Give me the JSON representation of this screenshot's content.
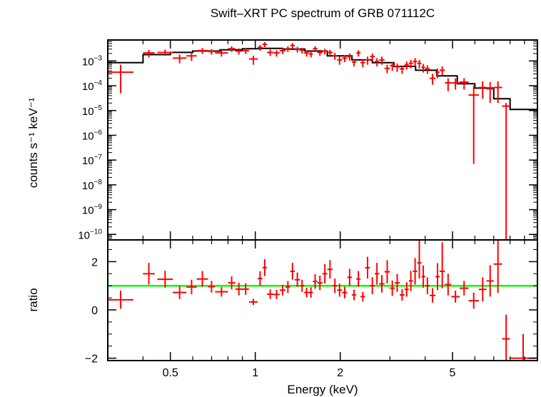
{
  "chart_data": [
    {
      "type": "scatter",
      "title": "Swift–XRT PC spectrum of GRB 071112C",
      "ylabel": "counts s⁻¹ keV⁻¹",
      "xlabel": "Energy (keV)",
      "xscale": "log",
      "yscale": "log",
      "xlim": [
        0.3,
        10
      ],
      "ylim": [
        6e-11,
        0.007
      ],
      "yticks": [
        {
          "value": 0.001,
          "mantissa": "10",
          "exp": "−3"
        },
        {
          "value": 0.0001,
          "mantissa": "10",
          "exp": "−4"
        },
        {
          "value": 1e-05,
          "mantissa": "10",
          "exp": "−5"
        },
        {
          "value": 1e-06,
          "mantissa": "10",
          "exp": "−6"
        },
        {
          "value": 1e-07,
          "mantissa": "10",
          "exp": "−7"
        },
        {
          "value": 1e-08,
          "mantissa": "10",
          "exp": "−8"
        },
        {
          "value": 1e-09,
          "mantissa": "10",
          "exp": "−9"
        },
        {
          "value": 1e-10,
          "mantissa": "10",
          "exp": "−10"
        }
      ],
      "model": {
        "color": "#000000",
        "bins": [
          [
            0.3,
            0.4,
            0.00085
          ],
          [
            0.4,
            0.5,
            0.0018
          ],
          [
            0.5,
            0.6,
            0.0022
          ],
          [
            0.6,
            0.75,
            0.0025
          ],
          [
            0.75,
            0.9,
            0.0028
          ],
          [
            0.9,
            1.05,
            0.0031
          ],
          [
            1.05,
            1.25,
            0.0032
          ],
          [
            1.25,
            1.5,
            0.003
          ],
          [
            1.5,
            1.8,
            0.0025
          ],
          [
            1.8,
            2.2,
            0.0016
          ],
          [
            2.2,
            2.6,
            0.0011
          ],
          [
            2.6,
            3.1,
            0.00085
          ],
          [
            3.1,
            3.7,
            0.0006
          ],
          [
            3.7,
            4.4,
            0.00042
          ],
          [
            4.4,
            5.2,
            0.00025
          ],
          [
            5.2,
            6.0,
            0.00012
          ],
          [
            6.0,
            7.0,
            8e-05
          ],
          [
            7.0,
            8.0,
            3e-05
          ],
          [
            8.0,
            9.0,
            1.1e-05
          ],
          [
            9.0,
            10.0,
            1.1e-05
          ]
        ]
      },
      "points": {
        "color": "#ff0000",
        "values": [
          [
            0.3,
            0.37,
            0.00035,
            5e-05,
            0.0007
          ],
          [
            0.4,
            0.44,
            0.0021,
            0.0014,
            0.0028
          ],
          [
            0.45,
            0.51,
            0.0022,
            0.0016,
            0.0029
          ],
          [
            0.51,
            0.57,
            0.0013,
            0.0008,
            0.0018
          ],
          [
            0.57,
            0.62,
            0.0016,
            0.001,
            0.0022
          ],
          [
            0.62,
            0.68,
            0.0026,
            0.0019,
            0.0033
          ],
          [
            0.68,
            0.72,
            0.0024,
            0.0018,
            0.003
          ],
          [
            0.72,
            0.8,
            0.0021,
            0.0015,
            0.0028
          ],
          [
            0.8,
            0.85,
            0.0031,
            0.0023,
            0.0039
          ],
          [
            0.85,
            0.9,
            0.0025,
            0.0018,
            0.0032
          ],
          [
            0.9,
            0.95,
            0.0026,
            0.0019,
            0.0033
          ],
          [
            0.95,
            1.02,
            0.0012,
            0.0007,
            0.0016
          ],
          [
            1.02,
            1.06,
            0.0035,
            0.0026,
            0.0044
          ],
          [
            1.06,
            1.1,
            0.0047,
            0.0036,
            0.0058
          ],
          [
            1.1,
            1.16,
            0.0022,
            0.0016,
            0.0029
          ],
          [
            1.16,
            1.22,
            0.0021,
            0.0015,
            0.0027
          ],
          [
            1.22,
            1.28,
            0.0026,
            0.0019,
            0.0033
          ],
          [
            1.28,
            1.33,
            0.0031,
            0.0023,
            0.0039
          ],
          [
            1.33,
            1.38,
            0.0042,
            0.0033,
            0.0052
          ],
          [
            1.38,
            1.44,
            0.0029,
            0.0022,
            0.0037
          ],
          [
            1.44,
            1.49,
            0.0027,
            0.002,
            0.0034
          ],
          [
            1.49,
            1.55,
            0.0021,
            0.0015,
            0.0027
          ],
          [
            1.55,
            1.6,
            0.0019,
            0.0014,
            0.0025
          ],
          [
            1.6,
            1.66,
            0.0031,
            0.0023,
            0.0039
          ],
          [
            1.66,
            1.73,
            0.0022,
            0.0016,
            0.0028
          ],
          [
            1.73,
            1.8,
            0.0025,
            0.0018,
            0.0031
          ],
          [
            1.8,
            1.88,
            0.0022,
            0.0016,
            0.0028
          ],
          [
            1.88,
            1.95,
            0.0016,
            0.0011,
            0.0021
          ],
          [
            1.95,
            2.03,
            0.0011,
            0.0007,
            0.0015
          ],
          [
            2.03,
            2.12,
            0.0013,
            0.0009,
            0.0017
          ],
          [
            2.12,
            2.2,
            0.0015,
            0.001,
            0.002
          ],
          [
            2.2,
            2.28,
            0.0009,
            0.0006,
            0.0012
          ],
          [
            2.28,
            2.36,
            0.0021,
            0.0015,
            0.0027
          ],
          [
            2.36,
            2.45,
            0.00085,
            0.00055,
            0.0012
          ],
          [
            2.45,
            2.55,
            0.0011,
            0.0007,
            0.0015
          ],
          [
            2.55,
            2.65,
            0.0015,
            0.001,
            0.002
          ],
          [
            2.65,
            2.75,
            0.00095,
            0.0006,
            0.0013
          ],
          [
            2.75,
            2.87,
            0.0011,
            0.0007,
            0.0015
          ],
          [
            2.87,
            3.0,
            0.0005,
            0.00032,
            0.0007
          ],
          [
            3.0,
            3.12,
            0.00065,
            0.0004,
            0.0009
          ],
          [
            3.12,
            3.25,
            0.00058,
            0.00036,
            0.0008
          ],
          [
            3.25,
            3.38,
            0.00048,
            0.0003,
            0.00066
          ],
          [
            3.38,
            3.5,
            0.0007,
            0.00045,
            0.00095
          ],
          [
            3.5,
            3.62,
            0.0008,
            0.0005,
            0.0011
          ],
          [
            3.62,
            3.75,
            0.00095,
            0.0006,
            0.0013
          ],
          [
            3.75,
            3.88,
            0.0008,
            0.0005,
            0.0011
          ],
          [
            3.88,
            4.0,
            0.00055,
            0.00034,
            0.00075
          ],
          [
            4.0,
            4.15,
            0.00048,
            0.0003,
            0.00066
          ],
          [
            4.15,
            4.35,
            0.0002,
            0.00011,
            0.0003
          ],
          [
            4.35,
            4.5,
            0.00035,
            0.0002,
            0.0005
          ],
          [
            4.5,
            4.7,
            0.00042,
            0.00025,
            0.0006
          ],
          [
            4.7,
            4.95,
            0.00013,
            6e-05,
            0.0002
          ],
          [
            4.95,
            5.3,
            0.00013,
            7e-05,
            0.0002
          ],
          [
            5.3,
            5.7,
            0.00014,
            7e-05,
            0.0002
          ],
          [
            5.7,
            6.2,
            4.2e-05,
            7e-08,
            0.0001
          ],
          [
            6.2,
            6.6,
            8.5e-05,
            3e-05,
            0.00015
          ],
          [
            6.6,
            7.0,
            7.5e-05,
            2e-05,
            0.00014
          ],
          [
            7.0,
            7.5,
            8.5e-05,
            2e-05,
            0.00015
          ],
          [
            7.5,
            8.0,
            1.5e-05,
            6e-11,
            2e-05
          ]
        ]
      }
    },
    {
      "type": "scatter",
      "ylabel": "ratio",
      "xlabel": "Energy (keV)",
      "xscale": "log",
      "xlim": [
        0.3,
        10
      ],
      "ylim": [
        -2.1,
        2.9
      ],
      "yticks": [
        2,
        0,
        -2
      ],
      "yticklabels": [
        "2",
        "0",
        "−2"
      ],
      "xticks": [
        0.5,
        1,
        2,
        5
      ],
      "xticklabels": [
        "0.5",
        "1",
        "2",
        "5"
      ],
      "reference_line": {
        "y": 1,
        "color": "#00ff00"
      },
      "points": {
        "color": "#ff0000",
        "values": [
          [
            0.3,
            0.37,
            0.42,
            0.05,
            0.8
          ],
          [
            0.4,
            0.44,
            1.5,
            1.05,
            1.95
          ],
          [
            0.45,
            0.51,
            1.27,
            0.92,
            1.62
          ],
          [
            0.51,
            0.57,
            0.72,
            0.45,
            0.99
          ],
          [
            0.57,
            0.62,
            0.95,
            0.65,
            1.25
          ],
          [
            0.62,
            0.68,
            1.28,
            0.95,
            1.61
          ],
          [
            0.68,
            0.72,
            0.96,
            0.72,
            1.2
          ],
          [
            0.72,
            0.8,
            0.75,
            0.55,
            0.95
          ],
          [
            0.8,
            0.85,
            1.12,
            0.85,
            1.39
          ],
          [
            0.85,
            0.9,
            0.86,
            0.6,
            1.12
          ],
          [
            0.9,
            0.95,
            0.86,
            0.62,
            1.1
          ],
          [
            0.95,
            1.02,
            0.33,
            0.2,
            0.46
          ],
          [
            1.02,
            1.06,
            1.3,
            1.0,
            1.6
          ],
          [
            1.06,
            1.1,
            1.75,
            1.4,
            2.1
          ],
          [
            1.1,
            1.16,
            0.65,
            0.45,
            0.85
          ],
          [
            1.16,
            1.22,
            0.64,
            0.45,
            0.83
          ],
          [
            1.22,
            1.28,
            0.82,
            0.6,
            1.04
          ],
          [
            1.28,
            1.33,
            0.95,
            0.7,
            1.2
          ],
          [
            1.33,
            1.38,
            1.6,
            1.25,
            1.95
          ],
          [
            1.38,
            1.44,
            1.25,
            0.95,
            1.55
          ],
          [
            1.44,
            1.49,
            1.0,
            0.75,
            1.25
          ],
          [
            1.49,
            1.55,
            0.72,
            0.52,
            0.92
          ],
          [
            1.55,
            1.6,
            0.72,
            0.5,
            0.94
          ],
          [
            1.6,
            1.66,
            1.18,
            0.88,
            1.48
          ],
          [
            1.66,
            1.73,
            1.12,
            0.82,
            1.42
          ],
          [
            1.73,
            1.8,
            1.5,
            1.1,
            1.9
          ],
          [
            1.8,
            1.88,
            1.68,
            1.3,
            2.06
          ],
          [
            1.88,
            1.95,
            1.0,
            0.7,
            1.3
          ],
          [
            1.95,
            2.03,
            0.82,
            0.55,
            1.09
          ],
          [
            2.03,
            2.12,
            0.72,
            0.48,
            0.96
          ],
          [
            2.12,
            2.2,
            1.35,
            1.0,
            1.7
          ],
          [
            2.2,
            2.28,
            0.62,
            0.4,
            0.84
          ],
          [
            2.28,
            2.36,
            1.28,
            0.95,
            1.61
          ],
          [
            2.36,
            2.45,
            0.55,
            0.35,
            0.75
          ],
          [
            2.45,
            2.55,
            1.75,
            1.3,
            2.2
          ],
          [
            2.55,
            2.65,
            1.0,
            0.65,
            1.35
          ],
          [
            2.65,
            2.75,
            1.5,
            1.05,
            1.95
          ],
          [
            2.75,
            2.87,
            1.08,
            0.72,
            1.44
          ],
          [
            2.87,
            3.0,
            1.58,
            1.1,
            2.06
          ],
          [
            3.0,
            3.12,
            0.9,
            0.58,
            1.22
          ],
          [
            3.12,
            3.25,
            1.12,
            0.75,
            1.49
          ],
          [
            3.25,
            3.38,
            0.62,
            0.38,
            0.86
          ],
          [
            3.38,
            3.5,
            0.85,
            0.55,
            1.15
          ],
          [
            3.5,
            3.62,
            1.2,
            0.78,
            1.62
          ],
          [
            3.62,
            3.75,
            1.6,
            1.05,
            2.15
          ],
          [
            3.75,
            3.88,
            1.95,
            1.3,
            2.9
          ],
          [
            3.88,
            4.0,
            1.38,
            0.92,
            1.84
          ],
          [
            4.0,
            4.15,
            1.0,
            0.65,
            1.35
          ],
          [
            4.15,
            4.35,
            0.6,
            0.3,
            0.9
          ],
          [
            4.35,
            4.5,
            1.38,
            0.82,
            1.94
          ],
          [
            4.5,
            4.7,
            1.6,
            0.9,
            2.8
          ],
          [
            4.7,
            4.95,
            1.05,
            0.6,
            1.5
          ],
          [
            4.95,
            5.3,
            0.55,
            0.3,
            0.8
          ],
          [
            5.3,
            5.7,
            0.9,
            0.6,
            1.2
          ],
          [
            5.7,
            6.2,
            0.38,
            0.05,
            0.72
          ],
          [
            6.2,
            6.6,
            0.85,
            0.35,
            1.35
          ],
          [
            6.6,
            7.0,
            1.2,
            0.55,
            1.85
          ],
          [
            7.0,
            7.5,
            1.9,
            0.7,
            2.9
          ],
          [
            7.5,
            8.0,
            -1.2,
            -2.1,
            -0.2
          ],
          [
            8.0,
            9.9,
            -2.0,
            -2.1,
            -1.0
          ]
        ]
      }
    }
  ]
}
